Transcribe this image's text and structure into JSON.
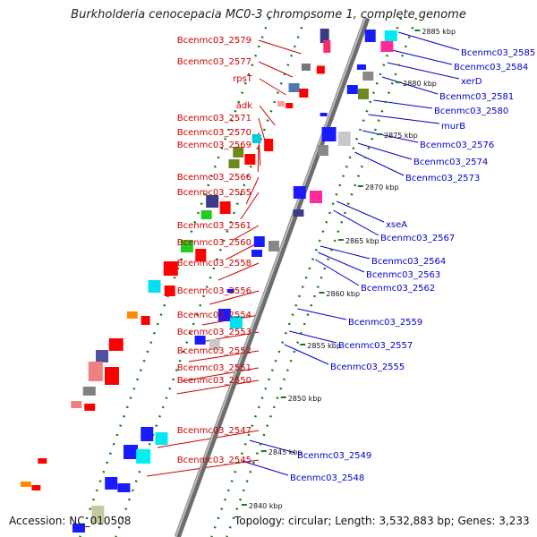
{
  "title": "Burkholderia cenocepacia MC0-3 chromosome 1, complete genome",
  "footer": {
    "accession": "Accession: NC_010508",
    "summary": "Topology: circular; Length: 3,532,883 bp; Genes: 3,233"
  },
  "colors": {
    "left_label": "#cc0000",
    "right_label": "#0000cc",
    "backbone": "#888888",
    "dots": "#1a7a1a"
  },
  "ticks": [
    "2885 kbp",
    "2880 kbp",
    "2875 kbp",
    "2870 kbp",
    "2865 kbp",
    "2860 kbp",
    "2855 kbp",
    "2850 kbp",
    "2845 kbp",
    "2840 kbp"
  ],
  "left_labels": [
    "Bcenmc03_2579",
    "Bcenmc03_2577",
    "rpsT",
    "adk",
    "Bcenmc03_2571",
    "Bcenmc03_2570",
    "Bcenmc03_2569",
    "Bcenmc03_2566",
    "Bcenmc03_2565",
    "Bcenmc03_2561",
    "Bcenmc03_2560",
    "Bcenmc03_2558",
    "Bcenmc03_2556",
    "Bcenmc03_2554",
    "Bcenmc03_2553",
    "Bcenmc03_2552",
    "Bcenmc03_2551",
    "Bcenmc03_2550",
    "Bcenmc03_2547",
    "Bcenmc03_2545"
  ],
  "right_labels": [
    "Bcenmc03_2585",
    "Bcenmc03_2584",
    "xerD",
    "Bcenmc03_2581",
    "Bcenmc03_2580",
    "murB",
    "Bcenmc03_2576",
    "Bcenmc03_2574",
    "Bcenmc03_2573",
    "xseA",
    "Bcenmc03_2567",
    "Bcenmc03_2564",
    "Bcenmc03_2563",
    "Bcenmc03_2562",
    "Bcenmc03_2559",
    "Bcenmc03_2557",
    "Bcenmc03_2555",
    "Bcenmc03_2549",
    "Bcenmc03_2548"
  ]
}
